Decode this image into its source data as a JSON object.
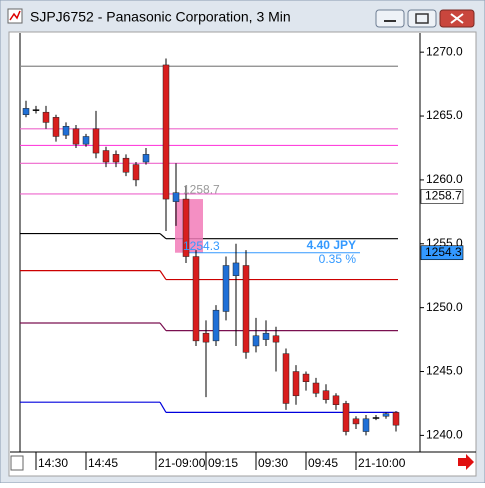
{
  "chart_data": {
    "type": "candlestick",
    "title": "SJPJ6752 - Panasonic Corporation, 3 Min",
    "categories": [
      null,
      null,
      "14:30",
      null,
      null,
      null,
      null,
      "14:45",
      null,
      null,
      null,
      null,
      null,
      null,
      "21-09:00",
      null,
      null,
      null,
      null,
      "09:15",
      null,
      null,
      null,
      null,
      "09:30",
      null,
      null,
      null,
      null,
      "09:45",
      null,
      null,
      null,
      null,
      "21-10:00",
      null,
      null,
      null
    ],
    "open": [
      1265.1,
      1265.5,
      1265.3,
      1264.9,
      1263.5,
      1264.0,
      1262.8,
      1264.0,
      1262.3,
      1262.0,
      1261.7,
      1261.2,
      1261.4,
      null,
      1269.0,
      1258.3,
      1258.5,
      1254.0,
      1248.0,
      1247.4,
      1249.7,
      1252.5,
      1253.3,
      1247.0,
      1247.5,
      1247.8,
      1246.4,
      1245.0,
      1244.8,
      1244.1,
      1243.5,
      1243.1,
      1242.5,
      1241.3,
      1240.3,
      1241.4,
      1241.5,
      1241.8
    ],
    "high": [
      1266.2,
      1265.8,
      1265.8,
      1265.1,
      1264.5,
      1264.3,
      1263.6,
      1265.4,
      1262.6,
      1262.3,
      1262.0,
      1261.4,
      1262.5,
      null,
      1269.5,
      1261.3,
      1259.5,
      1254.5,
      1249.0,
      1250.2,
      1254.0,
      1255.0,
      1254.5,
      1249.2,
      1249.0,
      1248.5,
      1246.8,
      1245.5,
      1245.0,
      1244.5,
      1244.0,
      1243.3,
      1242.7,
      1241.5,
      1241.6,
      1241.6,
      1241.8,
      1241.9
    ],
    "low": [
      1264.9,
      1265.2,
      1264.0,
      1263.0,
      1263.2,
      1262.5,
      1262.6,
      1261.7,
      1261.0,
      1261.0,
      1260.3,
      1259.5,
      1261.2,
      null,
      1256.0,
      1256.4,
      1253.5,
      1247.0,
      1243.0,
      1247.0,
      1249.0,
      1247.0,
      1246.0,
      1246.5,
      1247.0,
      1245.0,
      1242.0,
      1242.4,
      1243.5,
      1243.0,
      1242.5,
      1242.0,
      1240.0,
      1240.5,
      1240.0,
      1241.2,
      1241.3,
      1240.3
    ],
    "close": [
      1265.6,
      1265.5,
      1264.5,
      1263.4,
      1264.2,
      1262.8,
      1263.4,
      1262.1,
      1261.4,
      1261.4,
      1260.6,
      1260.0,
      1262.0,
      null,
      1258.5,
      1259.0,
      1254.0,
      1247.4,
      1247.3,
      1249.8,
      1253.3,
      1253.5,
      1246.5,
      1247.8,
      1248.0,
      1247.3,
      1242.5,
      1243.1,
      1244.2,
      1243.3,
      1242.8,
      1242.4,
      1240.3,
      1240.9,
      1241.3,
      1241.4,
      1241.7,
      1240.8
    ],
    "up_color": "#1f6fd6",
    "down_color": "#d81e1e",
    "ylim": [
      1238.7,
      1271.5
    ],
    "yticks": [
      {
        "value": 1240,
        "label": "1240.0"
      },
      {
        "value": 1245,
        "label": "1245.0"
      },
      {
        "value": 1250,
        "label": "1250.0"
      },
      {
        "value": 1255,
        "label": "1255.0"
      },
      {
        "value": 1260,
        "label": "1260.0"
      },
      {
        "value": 1265,
        "label": "1265.0"
      },
      {
        "value": 1270,
        "label": "1270.0"
      }
    ],
    "levels": [
      {
        "color": "#888888",
        "values": [
          1268.9,
          1268.9
        ]
      },
      {
        "color": "#ee66cc",
        "values": [
          1264.0,
          1264.0
        ]
      },
      {
        "color": "#ff44dd",
        "values": [
          1262.7,
          1262.7
        ]
      },
      {
        "color": "#ee66cc",
        "values": [
          1261.3,
          1261.3
        ]
      },
      {
        "color": "#ee66cc",
        "values": [
          1258.9,
          1258.9
        ]
      },
      {
        "color": "#000000",
        "values": [
          1255.8,
          1255.4
        ]
      },
      {
        "color": "#cc0000",
        "values": [
          1252.9,
          1252.2
        ]
      },
      {
        "color": "#7a1050",
        "values": [
          1248.8,
          1248.2
        ]
      },
      {
        "color": "#0000dd",
        "values": [
          1242.6,
          1241.8
        ]
      }
    ],
    "range_box": {
      "high": 1258.5,
      "low": 1254.3,
      "color": "#f27bb8"
    },
    "annotations": [
      {
        "text": "1258.7",
        "price": 1258.7,
        "color": "#999999"
      },
      {
        "text": "1254.3",
        "price": 1254.3,
        "color": "#3399ff"
      }
    ],
    "measure": {
      "price": 1254.3,
      "text": "4.40 JPY",
      "percent": "0.35 %",
      "color": "#3399ff"
    },
    "price_labels": [
      {
        "value": 1258.7,
        "label": "1258.7",
        "color": "#ffffff"
      },
      {
        "value": 1254.3,
        "label": "1254.3",
        "color": "#3399ff"
      }
    ]
  }
}
